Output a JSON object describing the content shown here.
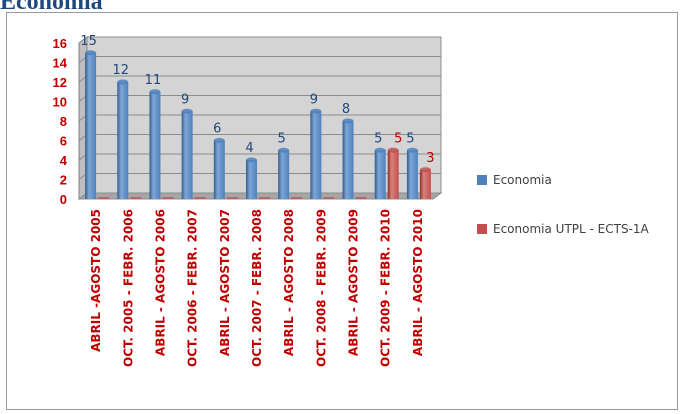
{
  "page": {
    "heading": "Economía"
  },
  "colors": {
    "series1": "#4f81bd",
    "series2": "#c0504d",
    "plot_background": "#d4d4d4",
    "gridline": "#8c8c8c",
    "axis_text": "#c00000",
    "value_label_series1": "#1f497d",
    "value_label_series2": "#c00000"
  },
  "chart_data": {
    "type": "bar",
    "title": "",
    "xlabel": "",
    "ylabel": "",
    "ylim": [
      0,
      16
    ],
    "yticks": [
      0,
      2,
      4,
      6,
      8,
      10,
      12,
      14,
      16
    ],
    "grid": true,
    "legend_position": "right",
    "bar_style": "3d-cylinder",
    "categories": [
      "ABRIL -AGOSTO 2005",
      "OCT. 2005 - FEBR. 2006",
      "ABRIL - AGOSTO 2006",
      "OCT. 2006 - FEBR. 2007",
      "ABRIL - AGOSTO 2007",
      "OCT. 2007 - FEBR. 2008",
      "ABRIL - AGOSTO 2008",
      "OCT. 2008 - FEBR. 2009",
      "ABRIL - AGOSTO 2009",
      "OCT. 2009 - FEBR. 2010",
      "ABRIL - AGOSTO 2010"
    ],
    "series": [
      {
        "name": "Economia",
        "values": [
          15,
          12,
          11,
          9,
          6,
          4,
          5,
          9,
          8,
          5,
          5
        ]
      },
      {
        "name": "Economia UTPL - ECTS-1A",
        "values": [
          0,
          0,
          0,
          0,
          0,
          0,
          0,
          0,
          0,
          5,
          3
        ]
      }
    ],
    "data_labels": [
      [
        "15",
        "12",
        "11",
        "9",
        "6",
        "4",
        "5",
        "9",
        "8",
        "5",
        "5"
      ],
      [
        "",
        "",
        "",
        "",
        "",
        "",
        "",
        "",
        "",
        "5",
        "3"
      ]
    ]
  },
  "legend": {
    "items": [
      {
        "label": "Economia",
        "color_key": "series1"
      },
      {
        "label": "Economia UTPL - ECTS-1A",
        "color_key": "series2"
      }
    ]
  }
}
